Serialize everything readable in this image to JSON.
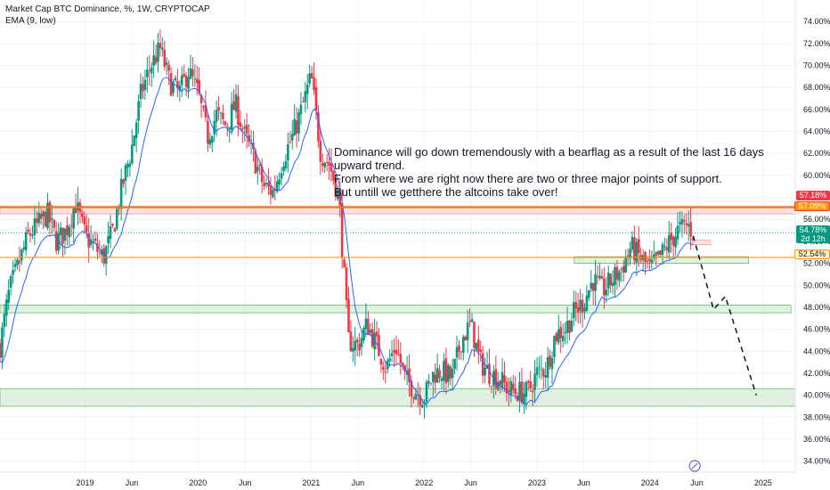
{
  "legend": {
    "line1": "Market Cap BTC Dominance, %, 1W, CRYPTOCAP",
    "line2": "EMA (9, low)"
  },
  "annotation": {
    "lines": [
      "Dominance will go down tremendously with a bearflag as a result of the last 16 days",
      "upward trend.",
      "From where we are right now there are two or three major points of support.",
      "But untill we getthere the altcoins take over!"
    ]
  },
  "price_tags": {
    "red": "57.18%",
    "orange": "57.09%",
    "current": "54.78%",
    "countdown": "2d 12h",
    "yellow": "52.54%"
  },
  "colors": {
    "up": "#089981",
    "down": "#f23645",
    "ema": "#2962ff",
    "resistance": "#f57c00",
    "support_fill": "#c8e6c9",
    "support_stroke": "#66bb6a",
    "level_yellow": "#ff9800",
    "current_line": "#089981"
  },
  "chart_data": {
    "type": "candlestick",
    "title": "Market Cap BTC Dominance, %, 1W, CRYPTOCAP",
    "ylabel": "%",
    "ylim": [
      33.0,
      74.5
    ],
    "y_ticks": [
      "74.00%",
      "72.00%",
      "70.00%",
      "68.00%",
      "66.00%",
      "64.00%",
      "62.00%",
      "60.00%",
      "58.00%",
      "56.00%",
      "54.00%",
      "52.00%",
      "50.00%",
      "48.00%",
      "46.00%",
      "44.00%",
      "42.00%",
      "40.00%",
      "38.00%",
      "36.00%",
      "34.00%"
    ],
    "x_ticks": [
      "2019",
      "Jun",
      "2020",
      "Jun",
      "2021",
      "Jun",
      "2022",
      "Jun",
      "2023",
      "Jun",
      "2024",
      "Jun",
      "2025"
    ],
    "x_tick_dates": [
      "2019-01-01",
      "2019-06-01",
      "2020-01-01",
      "2020-06-01",
      "2021-01-01",
      "2021-06-01",
      "2022-01-01",
      "2022-06-01",
      "2023-01-01",
      "2023-06-01",
      "2024-01-01",
      "2024-06-01",
      "2025-01-01"
    ],
    "xlim": [
      "2018-04-01",
      "2025-04-15"
    ],
    "close_path": [
      [
        "2018-04-01",
        44.5
      ],
      [
        "2018-05-01",
        49.5
      ],
      [
        "2018-06-01",
        52.0
      ],
      [
        "2018-07-01",
        54.5
      ],
      [
        "2018-08-01",
        55.5
      ],
      [
        "2018-09-01",
        56.5
      ],
      [
        "2018-10-01",
        54.0
      ],
      [
        "2018-11-01",
        55.0
      ],
      [
        "2018-12-01",
        57.5
      ],
      [
        "2019-01-01",
        54.5
      ],
      [
        "2019-02-01",
        53.5
      ],
      [
        "2019-03-01",
        52.5
      ],
      [
        "2019-04-01",
        55.0
      ],
      [
        "2019-05-01",
        59.0
      ],
      [
        "2019-06-01",
        62.5
      ],
      [
        "2019-07-01",
        67.5
      ],
      [
        "2019-08-01",
        70.0
      ],
      [
        "2019-09-01",
        71.5
      ],
      [
        "2019-10-01",
        68.5
      ],
      [
        "2019-11-01",
        67.5
      ],
      [
        "2019-12-01",
        69.5
      ],
      [
        "2020-01-01",
        67.5
      ],
      [
        "2020-02-01",
        63.5
      ],
      [
        "2020-03-01",
        65.5
      ],
      [
        "2020-04-01",
        64.5
      ],
      [
        "2020-05-01",
        66.5
      ],
      [
        "2020-06-01",
        63.5
      ],
      [
        "2020-07-01",
        61.5
      ],
      [
        "2020-08-01",
        59.0
      ],
      [
        "2020-09-01",
        58.5
      ],
      [
        "2020-10-01",
        61.5
      ],
      [
        "2020-11-01",
        63.5
      ],
      [
        "2020-12-01",
        66.0
      ],
      [
        "2021-01-01",
        69.0
      ],
      [
        "2021-02-01",
        62.0
      ],
      [
        "2021-03-01",
        61.0
      ],
      [
        "2021-04-01",
        58.0
      ],
      [
        "2021-05-01",
        45.0
      ],
      [
        "2021-06-01",
        44.5
      ],
      [
        "2021-07-01",
        46.5
      ],
      [
        "2021-08-01",
        44.5
      ],
      [
        "2021-09-01",
        42.5
      ],
      [
        "2021-10-01",
        44.5
      ],
      [
        "2021-11-01",
        41.5
      ],
      [
        "2021-12-01",
        40.5
      ],
      [
        "2022-01-01",
        39.8
      ],
      [
        "2022-02-01",
        42.0
      ],
      [
        "2022-03-01",
        42.2
      ],
      [
        "2022-04-01",
        41.5
      ],
      [
        "2022-05-01",
        45.0
      ],
      [
        "2022-06-01",
        46.5
      ],
      [
        "2022-07-01",
        43.0
      ],
      [
        "2022-08-01",
        42.0
      ],
      [
        "2022-09-01",
        41.5
      ],
      [
        "2022-10-01",
        40.5
      ],
      [
        "2022-11-01",
        40.3
      ],
      [
        "2022-12-01",
        40.2
      ],
      [
        "2023-01-01",
        42.0
      ],
      [
        "2023-02-01",
        42.5
      ],
      [
        "2023-03-01",
        45.5
      ],
      [
        "2023-04-01",
        46.0
      ],
      [
        "2023-05-01",
        47.5
      ],
      [
        "2023-06-01",
        48.5
      ],
      [
        "2023-07-01",
        50.5
      ],
      [
        "2023-08-01",
        49.5
      ],
      [
        "2023-09-01",
        50.5
      ],
      [
        "2023-10-01",
        51.5
      ],
      [
        "2023-11-01",
        53.5
      ],
      [
        "2023-12-01",
        52.5
      ],
      [
        "2024-01-01",
        51.5
      ],
      [
        "2024-02-01",
        52.5
      ],
      [
        "2024-03-01",
        53.8
      ],
      [
        "2024-04-01",
        55.0
      ],
      [
        "2024-05-01",
        55.5
      ],
      [
        "2024-05-20",
        54.78
      ]
    ],
    "ema_label": "EMA (9, low)",
    "horizontal_levels": [
      {
        "label": "57.18%",
        "value": 57.18
      },
      {
        "label": "57.09%",
        "value": 57.09
      },
      {
        "label": "52.54%",
        "value": 52.54
      },
      {
        "label": "54.78%",
        "value": 54.78
      }
    ],
    "support_zones": [
      {
        "from_date": "2023-05-01",
        "to_date": "2024-11-15",
        "low": 52.0,
        "high": 52.6
      },
      {
        "from_date": "2018-04-01",
        "to_date": "2025-04-01",
        "low": 47.5,
        "high": 48.2
      },
      {
        "from_date": "2018-04-01",
        "to_date": "2025-04-15",
        "low": 39.0,
        "high": 40.6
      }
    ],
    "resistance_zone": {
      "from_date": "2018-04-01",
      "to_date": "2025-04-15",
      "low": 56.5,
      "high": 57.2
    },
    "projection_path": [
      [
        "2024-05-20",
        54.5
      ],
      [
        "2024-07-25",
        47.8
      ],
      [
        "2024-09-01",
        49.0
      ],
      [
        "2024-12-10",
        40.0
      ]
    ]
  }
}
